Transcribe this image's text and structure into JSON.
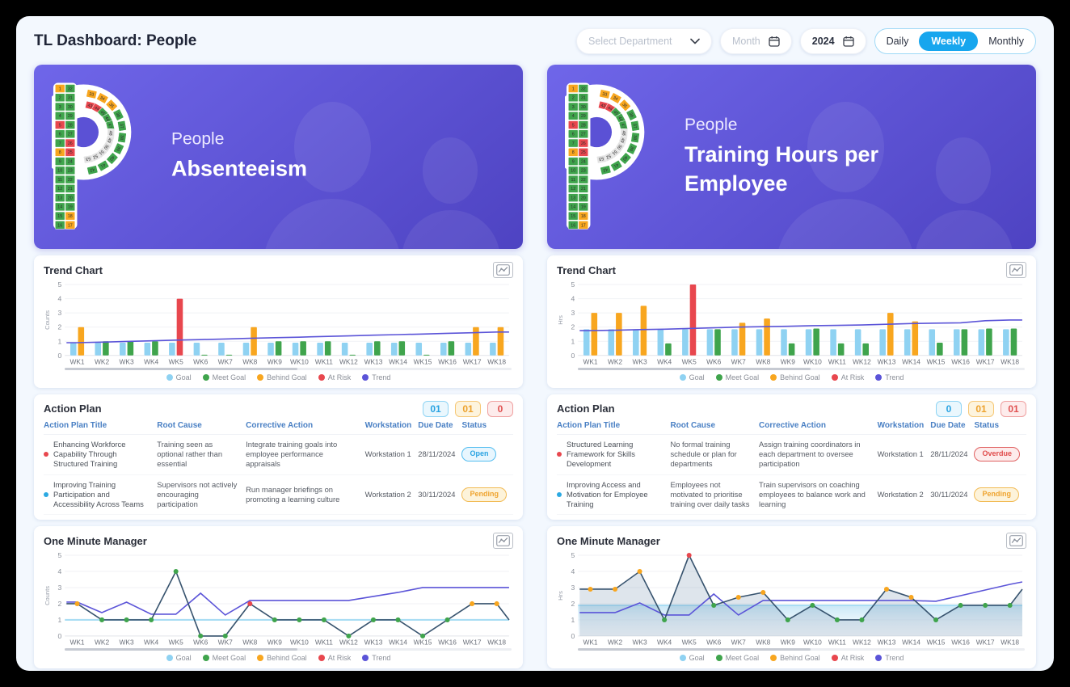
{
  "header": {
    "title": "TL Dashboard: People",
    "filters": {
      "department_placeholder": "Select Department",
      "month_placeholder": "Month",
      "year_value": "2024",
      "toggle": [
        "Daily",
        "Weekly",
        "Monthly"
      ],
      "toggle_active": "Weekly"
    }
  },
  "colors": {
    "goal": "#8FD2F2",
    "meet": "#3FA44C",
    "behind": "#F8A61F",
    "risk": "#E8474E",
    "trend": "#5B54D8",
    "navy": "#37536E",
    "accent_blue": "#17A6EE",
    "banner_from": "#6F66E9",
    "banner_to": "#4E43C2",
    "gray_cell": "#E2E2E2"
  },
  "legend": {
    "items": [
      {
        "key": "goal",
        "label": "Goal"
      },
      {
        "key": "meet",
        "label": "Meet Goal"
      },
      {
        "key": "behind",
        "label": "Behind Goal"
      },
      {
        "key": "risk",
        "label": "At Risk"
      },
      {
        "key": "trend",
        "label": "Trend"
      }
    ]
  },
  "logo": {
    "col1": [
      [
        "1",
        "behind"
      ],
      [
        "2",
        "meet"
      ],
      [
        "3",
        "meet"
      ],
      [
        "4",
        "meet"
      ],
      [
        "5",
        "risk"
      ],
      [
        "6",
        "meet"
      ],
      [
        "7",
        "meet"
      ],
      [
        "8",
        "behind"
      ],
      [
        "9",
        "meet"
      ],
      [
        "10",
        "meet"
      ],
      [
        "11",
        "meet"
      ],
      [
        "12",
        "meet"
      ],
      [
        "13",
        "meet"
      ],
      [
        "14",
        "meet"
      ],
      [
        "15",
        "meet"
      ],
      [
        "16",
        "meet"
      ]
    ],
    "col2": [
      [
        "32",
        "meet"
      ],
      [
        "31",
        "meet"
      ],
      [
        "30",
        "meet"
      ],
      [
        "29",
        "meet"
      ],
      [
        "28",
        "meet"
      ],
      [
        "27",
        "meet"
      ],
      [
        "26",
        "risk"
      ],
      [
        "25",
        "risk"
      ],
      [
        "24",
        "meet"
      ],
      [
        "23",
        "meet"
      ],
      [
        "22",
        "meet"
      ],
      [
        "21",
        "meet"
      ],
      [
        "20",
        "meet"
      ],
      [
        "19",
        "meet"
      ],
      [
        "18",
        "behind"
      ],
      [
        "17",
        "behind"
      ]
    ],
    "outer": [
      [
        "33",
        "behind"
      ],
      [
        "34",
        "behind"
      ],
      [
        "35",
        "behind"
      ],
      [
        "36",
        "meet"
      ],
      [
        "37",
        "meet"
      ],
      [
        "38",
        "meet"
      ],
      [
        "39",
        "meet"
      ],
      [
        "40",
        "meet"
      ],
      [
        "41",
        "meet"
      ],
      [
        "42",
        "meet"
      ]
    ],
    "inner": [
      [
        "43",
        "risk"
      ],
      [
        "44",
        "risk"
      ],
      [
        "45",
        "meet"
      ],
      [
        "46",
        "meet"
      ],
      [
        "47",
        "meet"
      ],
      [
        "48",
        "gray"
      ],
      [
        "49",
        "gray"
      ],
      [
        "50",
        "gray"
      ],
      [
        "51",
        "gray"
      ],
      [
        "52",
        "gray"
      ],
      [
        "53",
        "gray"
      ]
    ]
  },
  "panels": [
    {
      "banner": {
        "category": "People",
        "title": "Absenteeism"
      },
      "trend_chart": {
        "title": "Trend Chart",
        "data_index": 0
      },
      "action_plan": {
        "title": "Action Plan",
        "counts": [
          {
            "type": "open",
            "value": "01"
          },
          {
            "type": "pending",
            "value": "01"
          },
          {
            "type": "overdue",
            "value": "0"
          }
        ],
        "columns": [
          "Action Plan Title",
          "Root Cause",
          "Corrective Action",
          "Workstation",
          "Due Date",
          "Status"
        ],
        "rows": [
          {
            "severity": "risk",
            "title": "Enhancing Workforce Capability Through Structured Training",
            "root_cause": "Training seen as optional rather than essential",
            "corrective_action": "Integrate training goals into employee performance appraisals",
            "workstation": "Workstation 1",
            "due_date": "28/11/2024",
            "status": "Open",
            "status_type": "open"
          },
          {
            "severity": "info",
            "title": "Improving Training Participation and Accessibility Across Teams",
            "root_cause": "Supervisors not actively encouraging participation",
            "corrective_action": "Run manager briefings on promoting a learning culture",
            "workstation": "Workstation 2",
            "due_date": "30/11/2024",
            "status": "Pending",
            "status_type": "pending"
          }
        ]
      },
      "omm_chart": {
        "title": "One Minute Manager",
        "data_index": 1
      }
    },
    {
      "banner": {
        "category": "People",
        "title": "Training Hours per Employee"
      },
      "trend_chart": {
        "title": "Trend Chart",
        "data_index": 2
      },
      "action_plan": {
        "title": "Action Plan",
        "counts": [
          {
            "type": "open",
            "value": "0"
          },
          {
            "type": "pending",
            "value": "01"
          },
          {
            "type": "overdue",
            "value": "01"
          }
        ],
        "columns": [
          "Action Plan Title",
          "Root Cause",
          "Corrective Action",
          "Workstation",
          "Due Date",
          "Status"
        ],
        "rows": [
          {
            "severity": "risk",
            "title": "Structured Learning Framework for Skills Development",
            "root_cause": "No formal training schedule or plan for departments",
            "corrective_action": "Assign training coordinators in each department to oversee participation",
            "workstation": "Workstation 1",
            "due_date": "28/11/2024",
            "status": "Overdue",
            "status_type": "overdue"
          },
          {
            "severity": "info",
            "title": "Improving Access and Motivation for Employee Training",
            "root_cause": "Employees not motivated to prioritise training over daily tasks",
            "corrective_action": "Train supervisors on coaching employees to balance work and learning",
            "workstation": "Workstation 2",
            "due_date": "30/11/2024",
            "status": "Pending",
            "status_type": "pending"
          }
        ]
      },
      "omm_chart": {
        "title": "One Minute Manager",
        "data_index": 3
      }
    }
  ],
  "chart_data": [
    {
      "id": "absenteeism-trend",
      "type": "bar",
      "title": "Trend Chart",
      "ylabel": "Counts",
      "ymax": 5,
      "categories": [
        "WK1",
        "WK2",
        "WK3",
        "WK4",
        "WK5",
        "WK6",
        "WK7",
        "WK8",
        "WK9",
        "WK10",
        "WK11",
        "WK12",
        "WK13",
        "WK14",
        "WK15",
        "WK16",
        "WK17",
        "WK18"
      ],
      "goal": {
        "name": "Goal",
        "value": 0.9
      },
      "status": {
        "values": [
          2,
          1,
          1,
          1,
          4,
          0.05,
          0.05,
          2,
          1,
          1,
          1,
          0.05,
          1,
          1,
          0.05,
          1,
          2,
          2
        ],
        "colors": [
          "behind",
          "meet",
          "meet",
          "meet",
          "risk",
          "meet",
          "meet",
          "behind",
          "meet",
          "meet",
          "meet",
          "meet",
          "meet",
          "meet",
          "meet",
          "meet",
          "behind",
          "behind"
        ]
      },
      "trend": {
        "values": [
          0.9,
          0.94,
          0.99,
          1.03,
          1.08,
          1.12,
          1.16,
          1.21,
          1.25,
          1.29,
          1.34,
          1.38,
          1.43,
          1.47,
          1.51,
          1.56,
          1.6,
          1.65
        ]
      },
      "legend_position": "bottom",
      "grid": true
    },
    {
      "id": "absenteeism-omm",
      "type": "line",
      "title": "One Minute Manager",
      "ylabel": "Counts",
      "ymax": 5,
      "categories": [
        "WK1",
        "WK2",
        "WK3",
        "WK4",
        "WK5",
        "WK6",
        "WK7",
        "WK8",
        "WK9",
        "WK10",
        "WK11",
        "WK12",
        "WK13",
        "WK14",
        "WK15",
        "WK16",
        "WK17",
        "WK18"
      ],
      "goal": {
        "value": 1,
        "fill": false
      },
      "actual": {
        "values": [
          2,
          1,
          1,
          1,
          4,
          0,
          0,
          2,
          1,
          1,
          1,
          0,
          1,
          1,
          0,
          1,
          2,
          2
        ],
        "tail": 1,
        "area": false,
        "marker_colors": [
          "behind",
          "meet",
          "meet",
          "meet",
          "meet",
          "meet",
          "meet",
          "risk",
          "meet",
          "meet",
          "meet",
          "meet",
          "meet",
          "meet",
          "meet",
          "meet",
          "behind",
          "behind"
        ]
      },
      "trend": {
        "values": [
          2.1,
          1.45,
          2.1,
          1.35,
          1.35,
          2.65,
          1.3,
          2.2,
          2.2,
          2.2,
          2.2,
          2.2,
          2.45,
          2.7,
          3,
          3,
          3,
          3
        ],
        "tail": 3
      },
      "legend_position": "bottom",
      "grid": true
    },
    {
      "id": "training-trend",
      "type": "bar",
      "title": "Trend Chart",
      "ylabel": "Hrs",
      "ymax": 5,
      "categories": [
        "WK1",
        "WK2",
        "WK3",
        "WK4",
        "WK5",
        "WK6",
        "WK7",
        "WK8",
        "WK9",
        "WK10",
        "WK11",
        "WK12",
        "WK13",
        "WK14",
        "WK15",
        "WK16",
        "WK17",
        "WK18"
      ],
      "goal": {
        "name": "Goal",
        "value": 1.85
      },
      "status": {
        "values": [
          3,
          3,
          3.5,
          0.85,
          5,
          1.85,
          2.3,
          2.6,
          0.85,
          1.9,
          0.85,
          0.85,
          3,
          2.4,
          0.9,
          1.85,
          1.9,
          1.9
        ],
        "colors": [
          "behind",
          "behind",
          "behind",
          "meet",
          "risk",
          "meet",
          "behind",
          "behind",
          "meet",
          "meet",
          "meet",
          "meet",
          "behind",
          "behind",
          "meet",
          "meet",
          "meet",
          "meet"
        ]
      },
      "trend": {
        "values": [
          1.75,
          1.78,
          1.82,
          1.85,
          1.9,
          1.95,
          2,
          2.03,
          2.06,
          2.1,
          2.12,
          2.15,
          2.2,
          2.25,
          2.28,
          2.3,
          2.45,
          2.5
        ]
      },
      "legend_position": "bottom",
      "grid": true
    },
    {
      "id": "training-omm",
      "type": "line",
      "title": "One Minute Manager",
      "ylabel": "Hrs",
      "ymax": 5,
      "categories": [
        "WK1",
        "WK2",
        "WK3",
        "WK4",
        "WK5",
        "WK6",
        "WK7",
        "WK8",
        "WK9",
        "WK10",
        "WK11",
        "WK12",
        "WK13",
        "WK14",
        "WK15",
        "WK16",
        "WK17",
        "WK18"
      ],
      "goal": {
        "value": 1.9,
        "fill": true
      },
      "actual": {
        "values": [
          2.9,
          2.9,
          4,
          1,
          5,
          1.9,
          2.4,
          2.7,
          1,
          1.9,
          1,
          1,
          2.9,
          2.4,
          1,
          1.9,
          1.9,
          1.9
        ],
        "tail": 2.9,
        "area": true,
        "marker_colors": [
          "behind",
          "behind",
          "behind",
          "meet",
          "risk",
          "meet",
          "behind",
          "behind",
          "meet",
          "meet",
          "meet",
          "meet",
          "behind",
          "behind",
          "meet",
          "meet",
          "meet",
          "meet"
        ]
      },
      "trend": {
        "values": [
          1.45,
          1.45,
          2.05,
          1.3,
          1.3,
          2.6,
          1.3,
          2.2,
          2.2,
          2.2,
          2.2,
          2.2,
          2.2,
          2.2,
          2.15,
          2.5,
          2.85,
          3.2
        ],
        "tail": 3.35
      },
      "legend_position": "bottom",
      "grid": true
    }
  ]
}
